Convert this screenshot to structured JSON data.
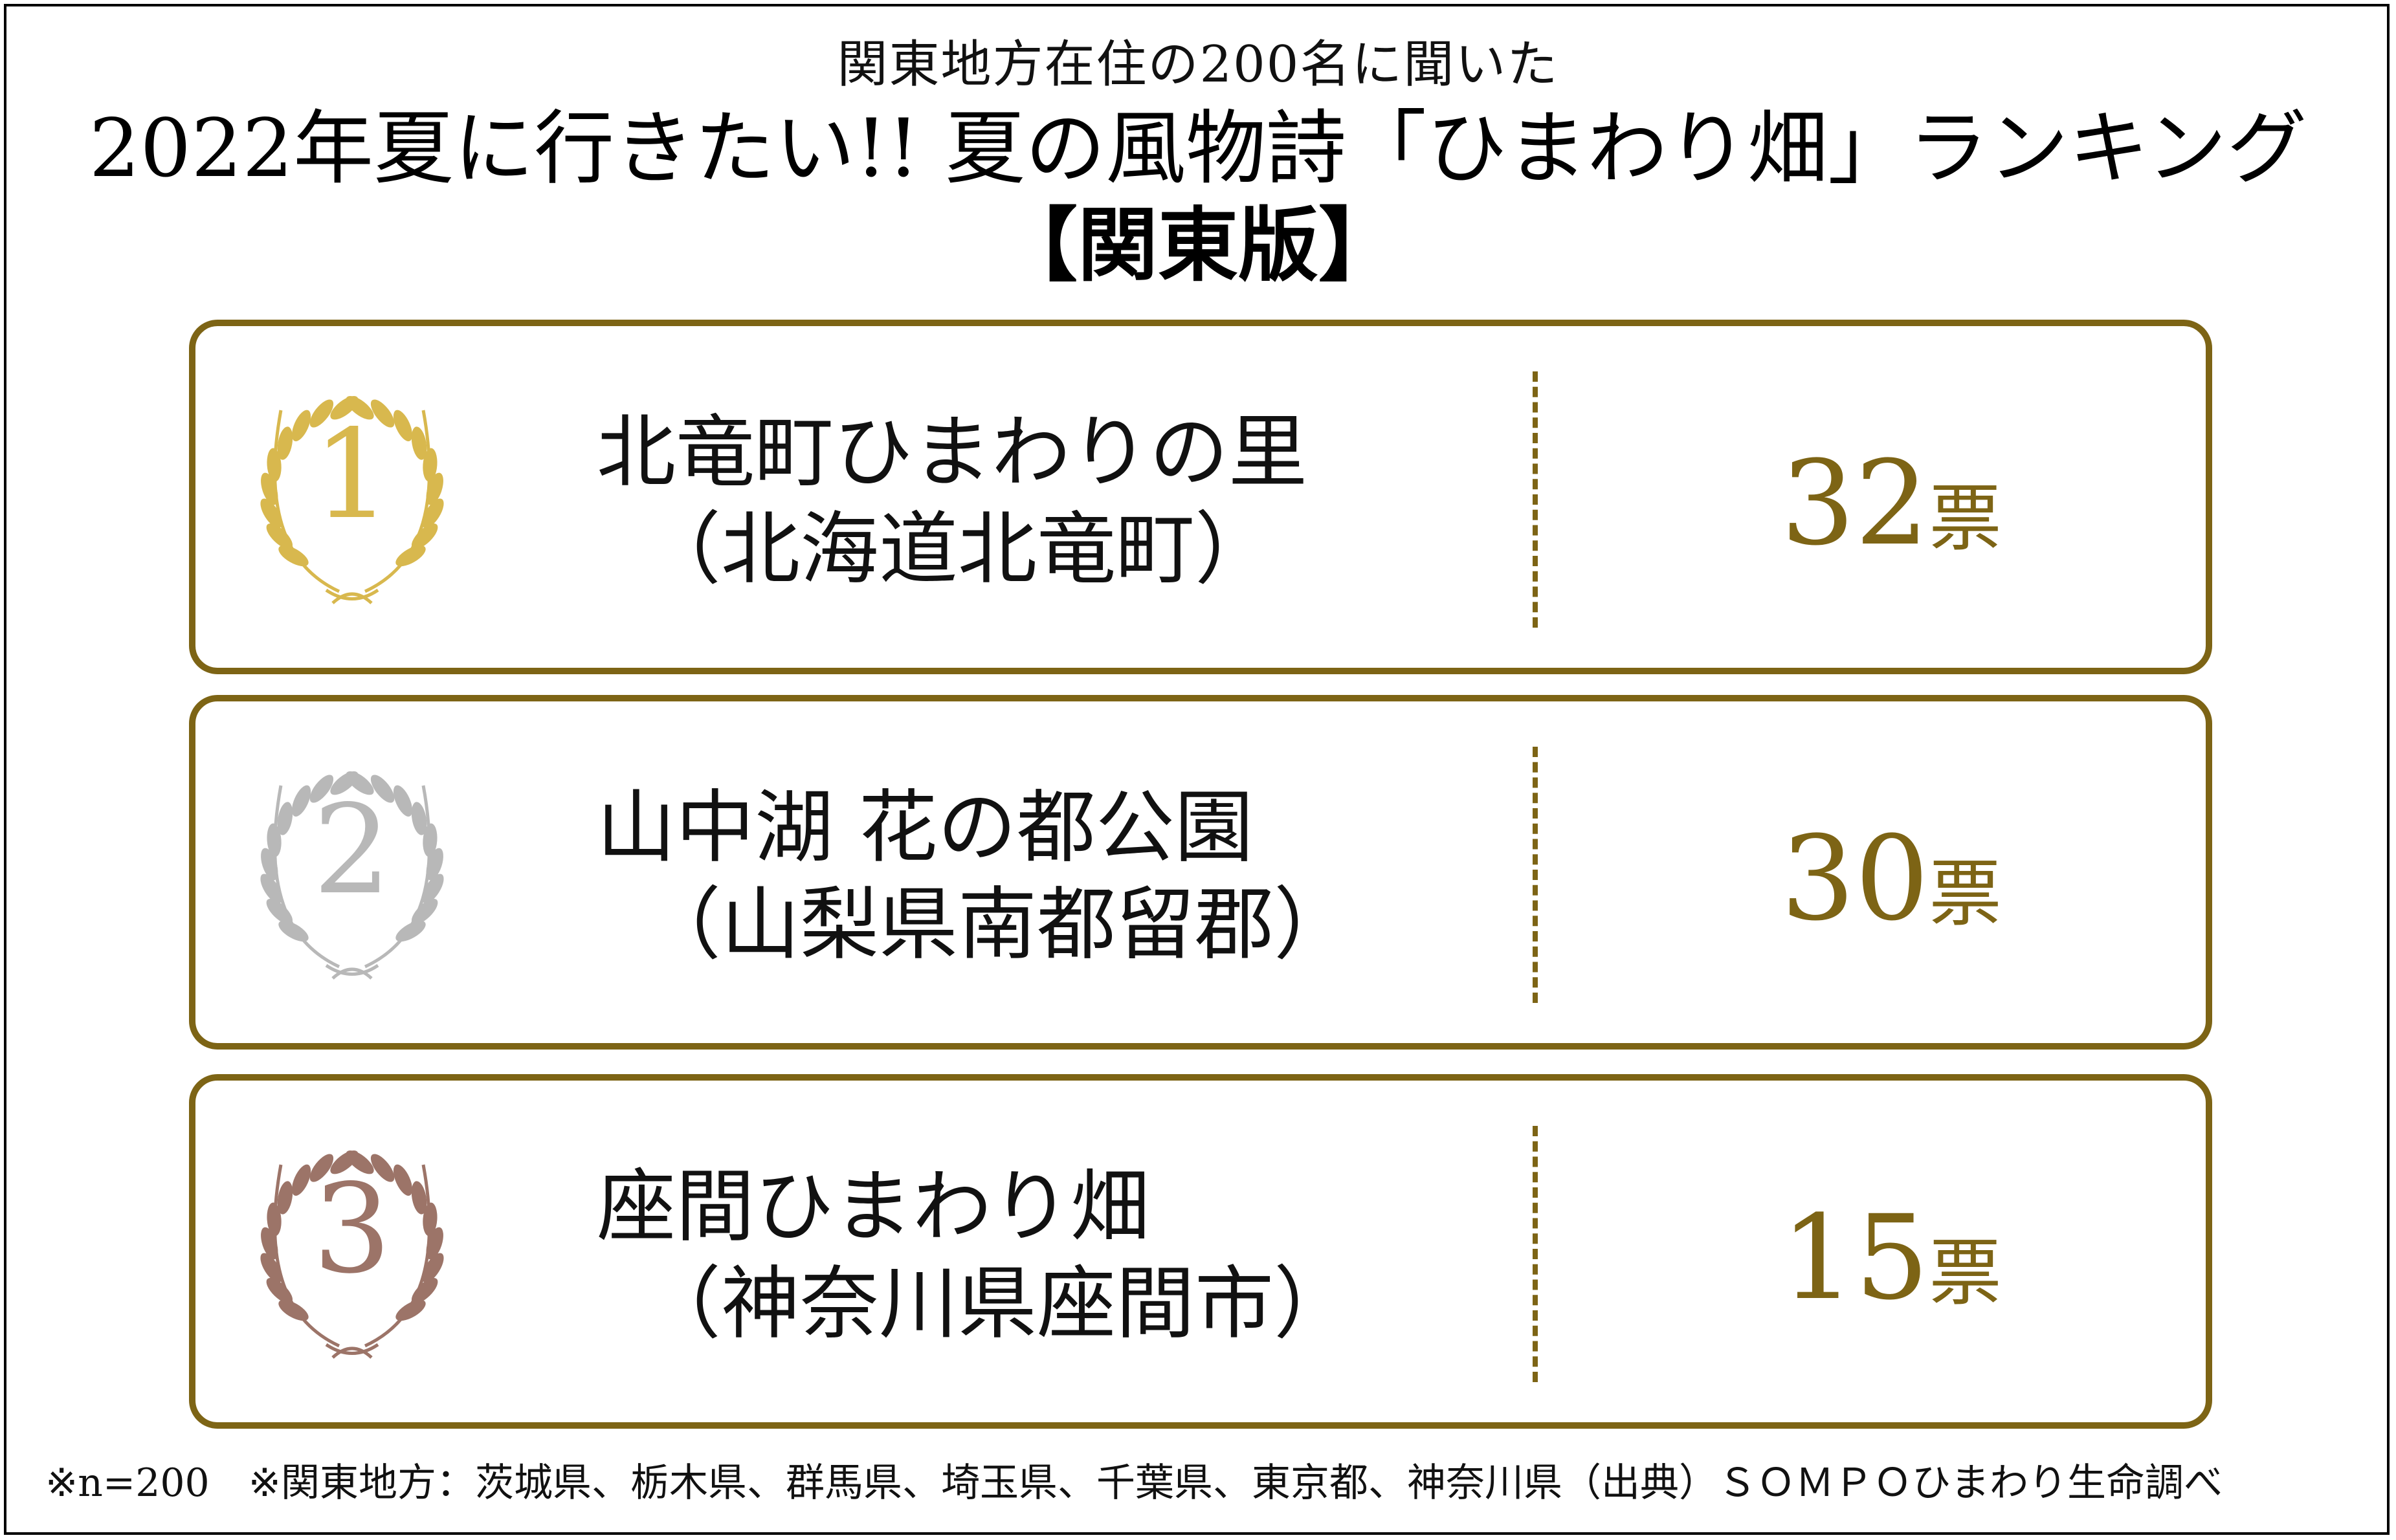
{
  "header": {
    "subtitle": "関東地方在住の200名に聞いた",
    "title": "2022年夏に行きたい!! 夏の風物詩「ひまわり畑」ランキング",
    "edition": "【関東版】"
  },
  "rankings": [
    {
      "rank": "1",
      "name": "北竜町ひまわりの里",
      "location": "（北海道北竜町）",
      "votes": "32",
      "unit": "票",
      "medal_color": "#d8b84e"
    },
    {
      "rank": "2",
      "name": "山中湖 花の都公園",
      "location": "（山梨県南都留郡）",
      "votes": "30",
      "unit": "票",
      "medal_color": "#b8b8b8"
    },
    {
      "rank": "3",
      "name": "座間ひまわり畑",
      "location": "（神奈川県座間市）",
      "votes": "15",
      "unit": "票",
      "medal_color": "#9c7468"
    }
  ],
  "footnote": "※n=200　※関東地方：茨城県、栃木県、群馬県、埼玉県、千葉県、東京都、神奈川県（出典）ＳＯＭＰＯひまわり生命調べ",
  "colors": {
    "accent": "#7d6415"
  }
}
